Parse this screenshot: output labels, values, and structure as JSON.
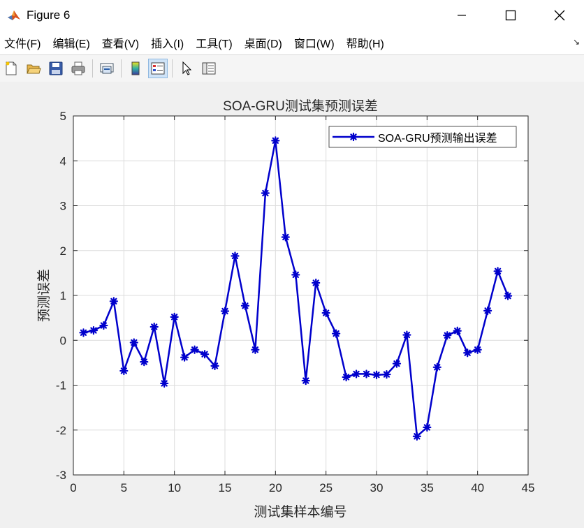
{
  "window": {
    "title": "Figure 6",
    "icon": "matlab-logo-icon"
  },
  "menu": {
    "items": [
      "文件(F)",
      "编辑(E)",
      "查看(V)",
      "插入(I)",
      "工具(T)",
      "桌面(D)",
      "窗口(W)",
      "帮助(H)"
    ]
  },
  "toolbar": {
    "icons": [
      "new-figure-icon",
      "open-file-icon",
      "save-icon",
      "print-icon",
      "link-plot-icon",
      "colorbar-icon",
      "legend-icon",
      "pointer-icon",
      "property-editor-icon"
    ]
  },
  "chart_data": {
    "type": "line",
    "title": "SOA-GRU测试集预测误差",
    "xlabel": "测试集样本编号",
    "ylabel": "预测误差",
    "xlim": [
      0,
      45
    ],
    "ylim": [
      -3,
      5
    ],
    "xticks": [
      0,
      5,
      10,
      15,
      20,
      25,
      30,
      35,
      40,
      45
    ],
    "yticks": [
      -3,
      -2,
      -1,
      0,
      1,
      2,
      3,
      4,
      5
    ],
    "grid": true,
    "legend_position": "top-right",
    "series": [
      {
        "name": "SOA-GRU预测输出误差",
        "color": "#0000cc",
        "marker": "asterisk",
        "x": [
          1,
          2,
          3,
          4,
          5,
          6,
          7,
          8,
          9,
          10,
          11,
          12,
          13,
          14,
          15,
          16,
          17,
          18,
          19,
          20,
          21,
          22,
          23,
          24,
          25,
          26,
          27,
          28,
          29,
          30,
          31,
          32,
          33,
          34,
          35,
          36,
          37,
          38,
          39,
          40,
          41,
          42,
          43
        ],
        "y": [
          0.17,
          0.22,
          0.33,
          0.87,
          -0.68,
          -0.05,
          -0.48,
          0.3,
          -0.96,
          0.52,
          -0.38,
          -0.21,
          -0.31,
          -0.57,
          0.65,
          1.88,
          0.77,
          -0.21,
          3.28,
          4.45,
          2.3,
          1.46,
          -0.9,
          1.28,
          0.61,
          0.15,
          -0.82,
          -0.75,
          -0.75,
          -0.77,
          -0.76,
          -0.52,
          0.12,
          -2.14,
          -1.94,
          -0.6,
          0.11,
          0.21,
          -0.28,
          -0.21,
          0.66,
          1.54,
          0.99
        ]
      }
    ]
  }
}
